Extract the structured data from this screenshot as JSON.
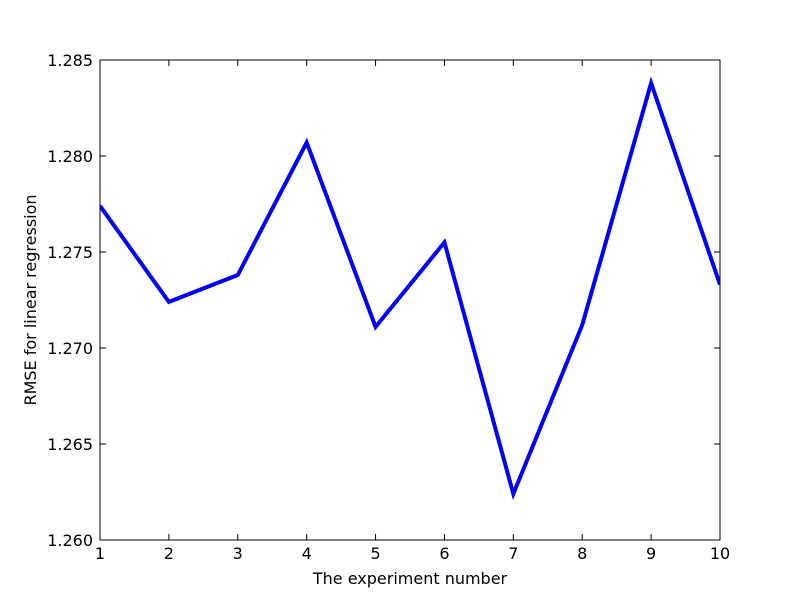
{
  "chart_data": {
    "type": "line",
    "title": "",
    "xlabel": "The experiment number",
    "ylabel": "RMSE for linear regression",
    "xlim": [
      1,
      10
    ],
    "ylim": [
      1.26,
      1.285
    ],
    "xticks": [
      1,
      2,
      3,
      4,
      5,
      6,
      7,
      8,
      9,
      10
    ],
    "yticks": [
      1.26,
      1.265,
      1.27,
      1.275,
      1.28,
      1.285
    ],
    "grid": false,
    "series": [
      {
        "color": "#0000ff",
        "x": [
          1,
          2,
          3,
          4,
          5,
          6,
          7,
          8,
          9,
          10
        ],
        "y": [
          1.2774,
          1.2724,
          1.2738,
          1.2807,
          1.2711,
          1.2755,
          1.2624,
          1.2712,
          1.2838,
          1.2733
        ]
      }
    ]
  }
}
